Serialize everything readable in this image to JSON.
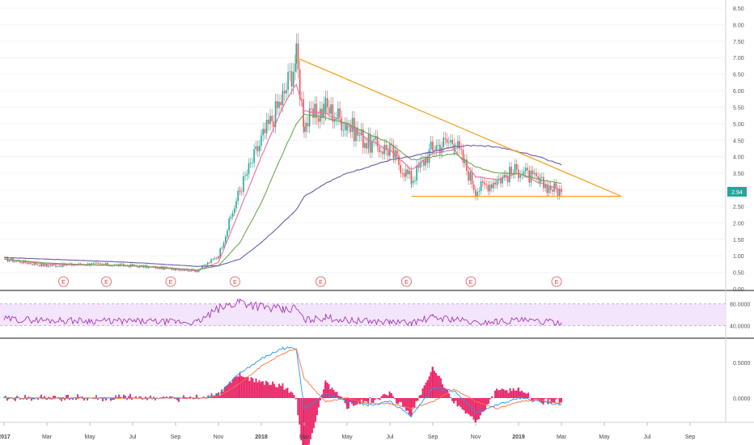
{
  "chart_data": {
    "type": "line",
    "panels": [
      "price",
      "rsi",
      "macd"
    ],
    "price": {
      "y_ticks": [
        "8.50",
        "8.00",
        "7.50",
        "7.00",
        "6.50",
        "6.00",
        "5.50",
        "5.00",
        "4.50",
        "4.00",
        "3.50",
        "3.00",
        "2.50",
        "2.00",
        "1.50",
        "1.00",
        "0.50",
        "0.00"
      ],
      "ylim": [
        0.0,
        8.5
      ],
      "last_value": 2.94,
      "last_value_label": "2.94",
      "last_value_color": "#26a69a",
      "candle_colors": {
        "up": "#26a69a",
        "down": "#ef5350"
      },
      "x_tick_labels": [
        "2017",
        "Mar",
        "May",
        "Jul",
        "Sep",
        "Nov",
        "2018",
        "Mar",
        "May",
        "Jul",
        "Sep",
        "Nov",
        "2019",
        "Mar",
        "May",
        "Jul",
        "Sep"
      ],
      "series": [
        {
          "kind": "candles",
          "color": "#26a69a",
          "x": [
            "2017-01",
            "2017-03",
            "2017-05",
            "2017-07",
            "2017-09",
            "2017-10",
            "2017-11",
            "2017-12",
            "2018-01",
            "2018-02",
            "2018-02-20",
            "2018-03",
            "2018-04",
            "2018-05",
            "2018-06",
            "2018-07",
            "2018-08",
            "2018-09",
            "2018-10",
            "2018-11",
            "2018-12",
            "2019-01",
            "2019-02",
            "2019-03"
          ],
          "values": [
            0.9,
            0.7,
            0.75,
            0.7,
            0.6,
            0.55,
            1.0,
            3.0,
            4.5,
            5.8,
            7.0,
            5.0,
            5.5,
            5.0,
            4.4,
            4.2,
            3.3,
            4.3,
            4.5,
            3.0,
            3.3,
            3.6,
            3.2,
            2.94
          ]
        },
        {
          "kind": "ma-fast",
          "color": "#ef6c9e",
          "values": [
            0.9,
            0.75,
            0.72,
            0.7,
            0.6,
            0.55,
            0.8,
            2.4,
            4.0,
            5.5,
            6.2,
            5.4,
            5.3,
            5.0,
            4.5,
            4.2,
            3.6,
            4.1,
            4.2,
            3.4,
            3.3,
            3.5,
            3.2,
            3.0
          ]
        },
        {
          "kind": "ma-mid",
          "color": "#6aa84f",
          "values": [
            0.9,
            0.78,
            0.73,
            0.7,
            0.62,
            0.57,
            0.7,
            1.4,
            2.6,
            4.1,
            5.0,
            5.3,
            5.2,
            5.0,
            4.7,
            4.4,
            3.9,
            4.0,
            4.1,
            3.7,
            3.5,
            3.5,
            3.3,
            3.2
          ]
        },
        {
          "kind": "ma-slow",
          "color": "#6b5ba6",
          "values": [
            0.95,
            0.9,
            0.85,
            0.8,
            0.72,
            0.68,
            0.7,
            0.9,
            1.4,
            2.0,
            2.4,
            2.8,
            3.2,
            3.5,
            3.7,
            3.9,
            4.0,
            4.15,
            4.3,
            4.35,
            4.3,
            4.15,
            4.0,
            3.75
          ]
        }
      ],
      "trendlines": [
        {
          "name": "descending",
          "color": "#f5a623",
          "from": [
            "2018-02-20",
            7.0
          ],
          "to": [
            "2019-05-25",
            2.8
          ]
        },
        {
          "name": "support",
          "color": "#f5a623",
          "from": [
            "2018-08-01",
            2.8
          ],
          "to": [
            "2019-05-25",
            2.8
          ]
        }
      ],
      "earnings_markers": [
        "E",
        "E",
        "E",
        "E",
        "E",
        "E",
        "E",
        "E"
      ]
    },
    "rsi": {
      "y_ticks": [
        "80.0000",
        "40.0000"
      ],
      "band": [
        40,
        80
      ],
      "band_color": "#f3e5fb",
      "line_color": "#9c27b0"
    },
    "macd": {
      "y_ticks": [
        "0.5000",
        "0.0000"
      ],
      "macd_color": "#2196f3",
      "signal_color": "#ff7043",
      "hist_color": "#e91e63"
    },
    "xlabel": "",
    "ylabel": ""
  }
}
